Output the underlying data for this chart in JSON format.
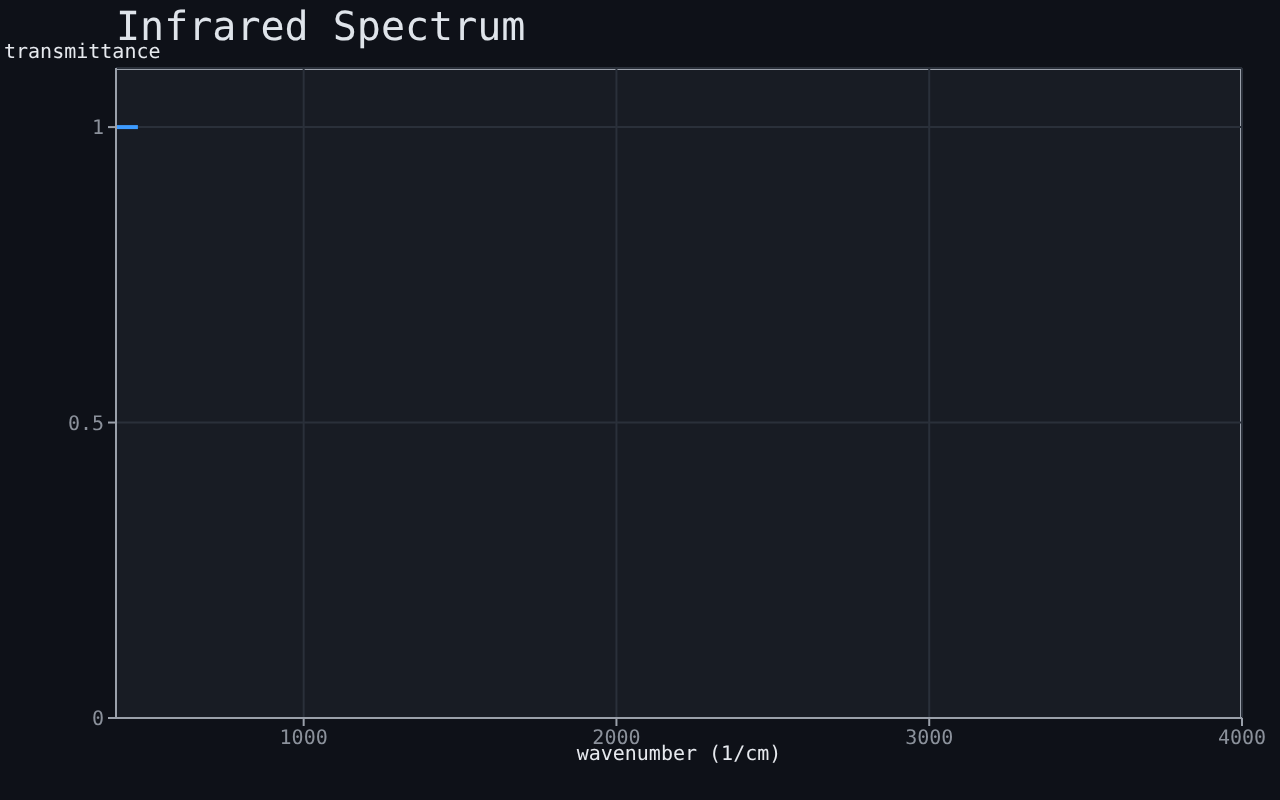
{
  "chart_data": {
    "type": "line",
    "title": "Infrared Spectrum",
    "xlabel": "wavenumber (1/cm)",
    "ylabel": "transmittance",
    "x": [
      400,
      470
    ],
    "series": [
      {
        "color": "#3d9bff",
        "values": [
          1,
          1
        ]
      }
    ],
    "xlim": [
      400,
      4000
    ],
    "xticks": [
      1000,
      2000,
      3000,
      4000
    ],
    "ylim": [
      0,
      1.1
    ],
    "yticks": [
      0,
      0.5,
      1
    ],
    "grid": true,
    "marker": "none",
    "line_style": "solid"
  }
}
